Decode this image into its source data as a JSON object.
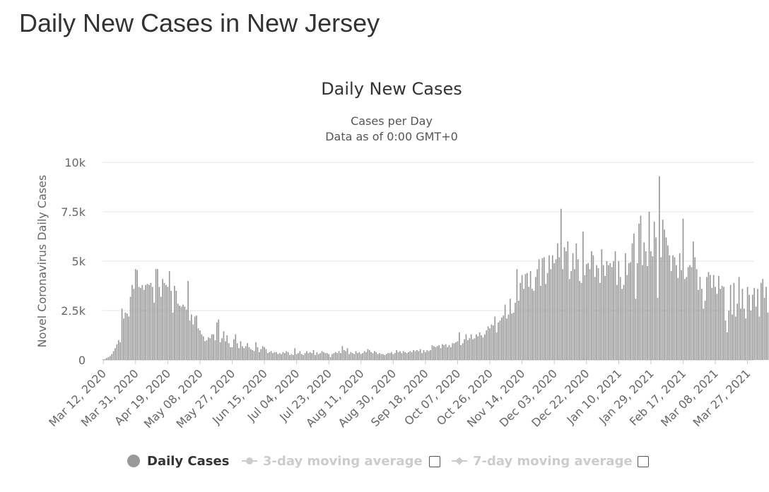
{
  "page": {
    "title": "Daily New Cases in New Jersey"
  },
  "colors": {
    "bar": "#999999",
    "grid": "#e6e6e6",
    "axis_text": "#666666",
    "legend_inactive": "#cccccc"
  },
  "legend": {
    "items": [
      {
        "label": "Daily Cases",
        "active": true,
        "icon": "circle-marker-icon"
      },
      {
        "label": "3-day moving average",
        "active": false,
        "icon": "line-circle-marker-icon"
      },
      {
        "label": "7-day moving average",
        "active": false,
        "icon": "line-diamond-marker-icon"
      }
    ]
  },
  "chart_data": {
    "type": "bar",
    "title": "Daily New Cases",
    "subtitle": [
      "Cases per Day",
      "Data as of 0:00 GMT+0"
    ],
    "ylabel": "Novel Coronavirus Daily Cases",
    "xlabel": "",
    "ylim": [
      0,
      10000
    ],
    "yticks": [
      {
        "value": 0,
        "label": "0"
      },
      {
        "value": 2500,
        "label": "2.5k"
      },
      {
        "value": 5000,
        "label": "5k"
      },
      {
        "value": 7500,
        "label": "7.5k"
      },
      {
        "value": 10000,
        "label": "10k"
      }
    ],
    "x_start": "2020-03-12",
    "x_end": "2021-03-30",
    "xtick_labels": [
      "Mar 12, 2020",
      "Mar 31, 2020",
      "Apr 19, 2020",
      "May 08, 2020",
      "May 27, 2020",
      "Jun 15, 2020",
      "Jul 04, 2020",
      "Jul 23, 2020",
      "Aug 11, 2020",
      "Aug 30, 2020",
      "Sep 18, 2020",
      "Oct 07, 2020",
      "Oct 26, 2020",
      "Nov 14, 2020",
      "Dec 03, 2020",
      "Dec 22, 2020",
      "Jan 10, 2021",
      "Jan 29, 2021",
      "Feb 17, 2021",
      "Mar 08, 2021",
      "Mar 27, 2021"
    ],
    "grid": true,
    "legend_position": "bottom",
    "series": [
      {
        "name": "Daily Cases",
        "values": [
          30,
          50,
          100,
          150,
          200,
          300,
          450,
          600,
          800,
          1000,
          900,
          2600,
          2100,
          2400,
          2350,
          2200,
          3200,
          3800,
          3600,
          4600,
          4550,
          3700,
          3650,
          3800,
          3550,
          3800,
          3850,
          3800,
          3900,
          3700,
          2900,
          4600,
          4600,
          3700,
          3200,
          4100,
          3900,
          3800,
          3700,
          4500,
          3500,
          2400,
          3750,
          3500,
          2850,
          2750,
          2700,
          2800,
          2700,
          2550,
          4000,
          2000,
          2300,
          1800,
          2200,
          2250,
          1600,
          1500,
          1300,
          1200,
          950,
          1000,
          1150,
          1100,
          1300,
          1300,
          1000,
          1900,
          2050,
          900,
          1100,
          1450,
          950,
          1250,
          850,
          650,
          650,
          1050,
          1300,
          850,
          600,
          950,
          700,
          600,
          700,
          850,
          650,
          550,
          500,
          450,
          900,
          650,
          400,
          550,
          700,
          650,
          550,
          350,
          400,
          450,
          350,
          400,
          400,
          300,
          350,
          300,
          400,
          350,
          450,
          400,
          250,
          300,
          250,
          600,
          300,
          350,
          450,
          300,
          250,
          350,
          450,
          350,
          400,
          350,
          500,
          250,
          400,
          300,
          350,
          450,
          400,
          350,
          350,
          300,
          150,
          300,
          350,
          400,
          350,
          450,
          350,
          700,
          500,
          450,
          600,
          300,
          400,
          350,
          300,
          450,
          350,
          400,
          300,
          350,
          450,
          400,
          550,
          500,
          400,
          350,
          450,
          400,
          300,
          350,
          300,
          300,
          250,
          300,
          350,
          350,
          400,
          300,
          350,
          500,
          400,
          450,
          350,
          450,
          400,
          350,
          400,
          450,
          400,
          500,
          450,
          500,
          450,
          550,
          350,
          500,
          400,
          500,
          450,
          500,
          750,
          700,
          650,
          700,
          750,
          600,
          800,
          750,
          800,
          650,
          750,
          650,
          850,
          850,
          900,
          950,
          1400,
          750,
          850,
          1050,
          1300,
          1000,
          1100,
          1300,
          1050,
          1100,
          1300,
          1200,
          1400,
          1250,
          1150,
          1300,
          1500,
          1700,
          1600,
          1800,
          1750,
          2200,
          1400,
          1900,
          2000,
          2150,
          2250,
          2800,
          2100,
          2300,
          3100,
          2350,
          2400,
          2900,
          4600,
          3000,
          3900,
          4300,
          3600,
          4350,
          4400,
          3700,
          4500,
          3600,
          3500,
          4200,
          4600,
          5100,
          3750,
          5150,
          5200,
          3850,
          4400,
          5300,
          4600,
          5300,
          4900,
          5100,
          5900,
          5200,
          7650,
          4600,
          5700,
          5500,
          6000,
          4100,
          4500,
          5400,
          4600,
          5900,
          5100,
          4000,
          3900,
          6500,
          4300,
          4850,
          4900,
          4600,
          5500,
          5300,
          4200,
          4800,
          4650,
          3900,
          5600,
          4800,
          4250,
          5000,
          4800,
          4900,
          4700,
          5000,
          5500,
          3800,
          5000,
          4200,
          3600,
          3800,
          5400,
          4300,
          4900,
          4950,
          5900,
          6400,
          3100,
          4900,
          6900,
          7300,
          4800,
          5950,
          5500,
          4750,
          7500,
          5500,
          5250,
          7000,
          6200,
          3150,
          9300,
          5200,
          7100,
          6600,
          6200,
          5800,
          5300,
          4500,
          5300,
          5200,
          4800,
          4150,
          5400,
          4550,
          7150,
          4100,
          4200,
          4700,
          4800,
          4700,
          6000,
          5200,
          4600,
          3550,
          4200,
          3600,
          2600,
          3000,
          4200,
          4450,
          4300,
          3650,
          4300,
          3700,
          3350,
          4250,
          3600,
          3750,
          3700,
          2000,
          1400,
          2500,
          3800,
          2300,
          3900,
          2200,
          2850,
          4200,
          2600,
          3600,
          2600,
          2100,
          3700,
          3300,
          2500,
          3300,
          3650,
          2700,
          3600,
          2200,
          3900,
          4100,
          3150,
          3700,
          2400,
          3200,
          2800,
          3300,
          4400,
          2600,
          2250,
          3400,
          3750,
          2600,
          4200,
          3900,
          4200,
          3100,
          2800,
          4200,
          2600,
          3500,
          3250,
          4200,
          4300,
          4150,
          3600,
          4800,
          3150,
          3900,
          4700,
          3950,
          3500,
          5600,
          4800,
          4400
        ]
      }
    ]
  }
}
